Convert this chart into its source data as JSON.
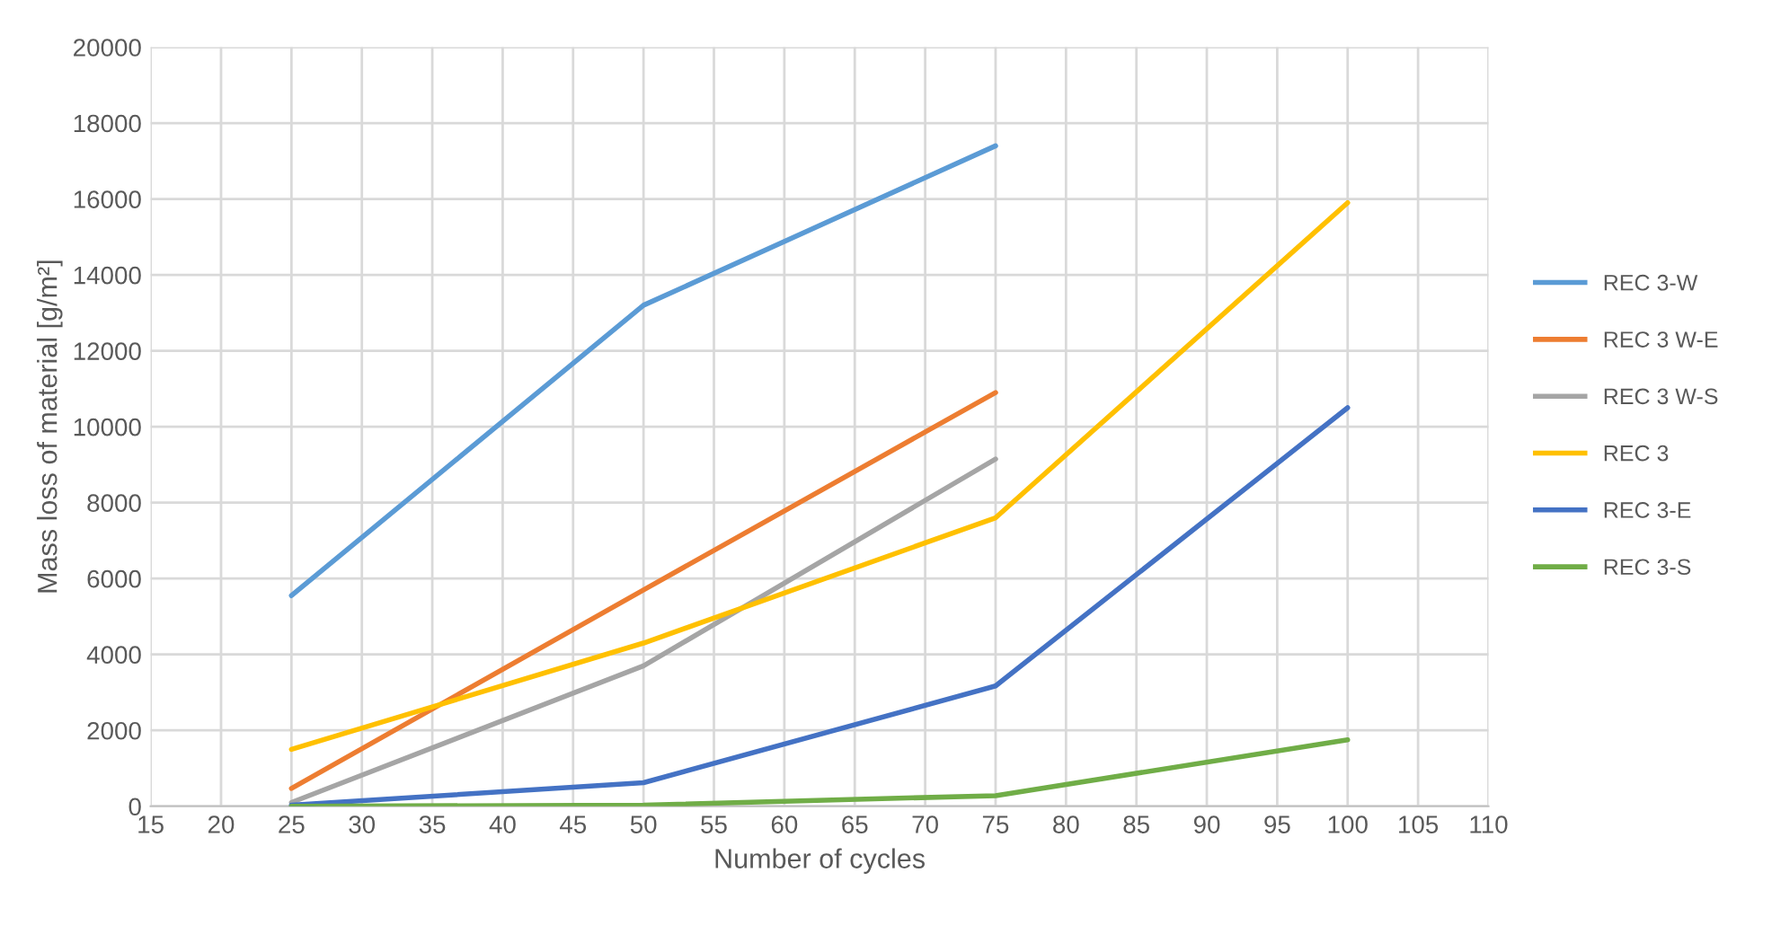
{
  "chart_data": {
    "type": "line",
    "xlabel": "Number of cycles",
    "ylabel": "Mass loss of material [g/m²]",
    "xlim": [
      15,
      110
    ],
    "xticks": [
      15,
      20,
      25,
      30,
      35,
      40,
      45,
      50,
      55,
      60,
      65,
      70,
      75,
      80,
      85,
      90,
      95,
      100,
      105,
      110
    ],
    "ylim": [
      0,
      20000
    ],
    "yticks": [
      0,
      2000,
      4000,
      6000,
      8000,
      10000,
      12000,
      14000,
      16000,
      18000,
      20000
    ],
    "grid": true,
    "legend": "right",
    "marker": "none",
    "line_style": "solid",
    "series": [
      {
        "name": "REC 3-W",
        "color": "#5b9bd5",
        "x": [
          25,
          50,
          75
        ],
        "values": [
          5550,
          13200,
          17400
        ]
      },
      {
        "name": "REC 3 W-E",
        "color": "#ed7d31",
        "x": [
          25,
          50,
          75
        ],
        "values": [
          470,
          5700,
          10900
        ]
      },
      {
        "name": "REC 3 W-S",
        "color": "#a5a5a5",
        "x": [
          25,
          50,
          75
        ],
        "values": [
          100,
          3700,
          9150
        ]
      },
      {
        "name": "REC 3",
        "color": "#ffc000",
        "x": [
          25,
          50,
          75,
          100
        ],
        "values": [
          1500,
          4300,
          7600,
          15900
        ]
      },
      {
        "name": "REC 3-E",
        "color": "#4472c4",
        "x": [
          25,
          50,
          75,
          100
        ],
        "values": [
          30,
          620,
          3170,
          10500
        ]
      },
      {
        "name": "REC 3-S",
        "color": "#70ad47",
        "x": [
          25,
          50,
          75,
          100
        ],
        "values": [
          0,
          30,
          280,
          1750
        ]
      }
    ]
  }
}
